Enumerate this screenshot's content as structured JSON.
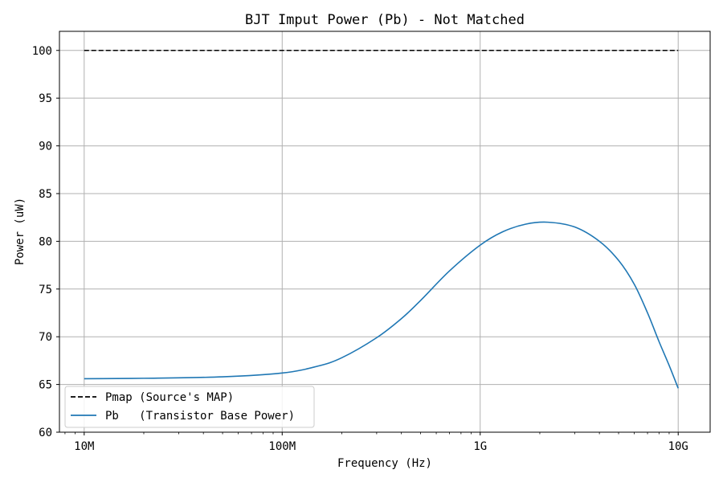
{
  "chart_data": {
    "type": "line",
    "title": "BJT Imput Power (Pb) - Not Matched",
    "xlabel": "Frequency (Hz)",
    "ylabel": "Power (uW)",
    "x_scale": "log",
    "xlim": [
      7500000,
      14500000000
    ],
    "ylim": [
      60,
      102
    ],
    "grid": true,
    "legend_location": "lower-left",
    "xticks": [
      {
        "value": 10000000,
        "label": "10M"
      },
      {
        "value": 100000000,
        "label": "100M"
      },
      {
        "value": 1000000000,
        "label": "1G"
      },
      {
        "value": 10000000000,
        "label": "10G"
      }
    ],
    "yticks": [
      {
        "value": 60,
        "label": "60"
      },
      {
        "value": 65,
        "label": "65"
      },
      {
        "value": 70,
        "label": "70"
      },
      {
        "value": 75,
        "label": "75"
      },
      {
        "value": 80,
        "label": "80"
      },
      {
        "value": 85,
        "label": "85"
      },
      {
        "value": 90,
        "label": "90"
      },
      {
        "value": 95,
        "label": "95"
      },
      {
        "value": 100,
        "label": "100"
      }
    ],
    "series": [
      {
        "name": "Pmap (Source's MAP)",
        "color": "#000000",
        "style": "dashed",
        "x": [
          10000000,
          10000000000
        ],
        "y": [
          100,
          100
        ]
      },
      {
        "name": "Pb   (Transistor Base Power)",
        "color": "#1f77b4",
        "style": "solid",
        "x": [
          10000000,
          20000000,
          50000000,
          100000000,
          150000000,
          200000000,
          300000000,
          400000000,
          500000000,
          700000000,
          1000000000,
          1300000000,
          1700000000,
          2200000000,
          3000000000,
          4000000000,
          5000000000,
          6000000000,
          7000000000,
          8000000000,
          9000000000,
          10000000000
        ],
        "y": [
          65.6,
          65.65,
          65.8,
          66.2,
          66.9,
          67.8,
          69.9,
          71.9,
          73.8,
          76.9,
          79.6,
          81.0,
          81.8,
          82.0,
          81.5,
          80.0,
          78.0,
          75.5,
          72.5,
          69.5,
          67.0,
          64.6
        ]
      }
    ]
  }
}
